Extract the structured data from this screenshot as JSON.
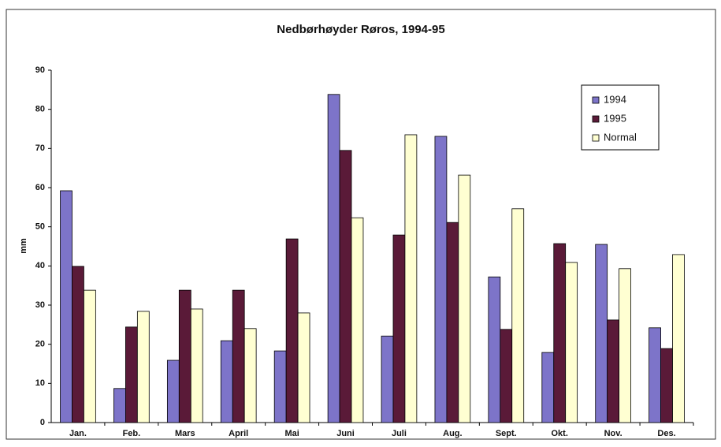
{
  "chart_data": {
    "type": "bar",
    "title": "Nedbørhøyder Røros, 1994-95",
    "y_label": "mm",
    "categories": [
      "Jan.",
      "Feb.",
      "Mars",
      "April",
      "Mai",
      "Juni",
      "Juli",
      "Aug.",
      "Sept.",
      "Okt.",
      "Nov.",
      "Des."
    ],
    "series": [
      {
        "name": "1994",
        "color": "#7d74c9",
        "values": [
          59.2,
          8.7,
          15.9,
          20.9,
          18.3,
          83.8,
          22.1,
          73.1,
          37.2,
          17.9,
          45.5,
          24.2
        ]
      },
      {
        "name": "1995",
        "color": "#5a1a38",
        "values": [
          39.9,
          24.4,
          33.8,
          33.8,
          46.9,
          69.5,
          47.9,
          51.1,
          23.8,
          45.7,
          26.2,
          18.9
        ]
      },
      {
        "name": "Normal",
        "color": "#ffffd2",
        "values": [
          33.8,
          28.4,
          29,
          24,
          28,
          52.3,
          73.5,
          63.2,
          54.6,
          40.9,
          39.3,
          42.9
        ]
      }
    ],
    "ylim": [
      0,
      90
    ],
    "yticks": [
      0,
      10,
      20,
      30,
      40,
      50,
      60,
      70,
      80,
      90
    ],
    "legend": "top-right"
  }
}
